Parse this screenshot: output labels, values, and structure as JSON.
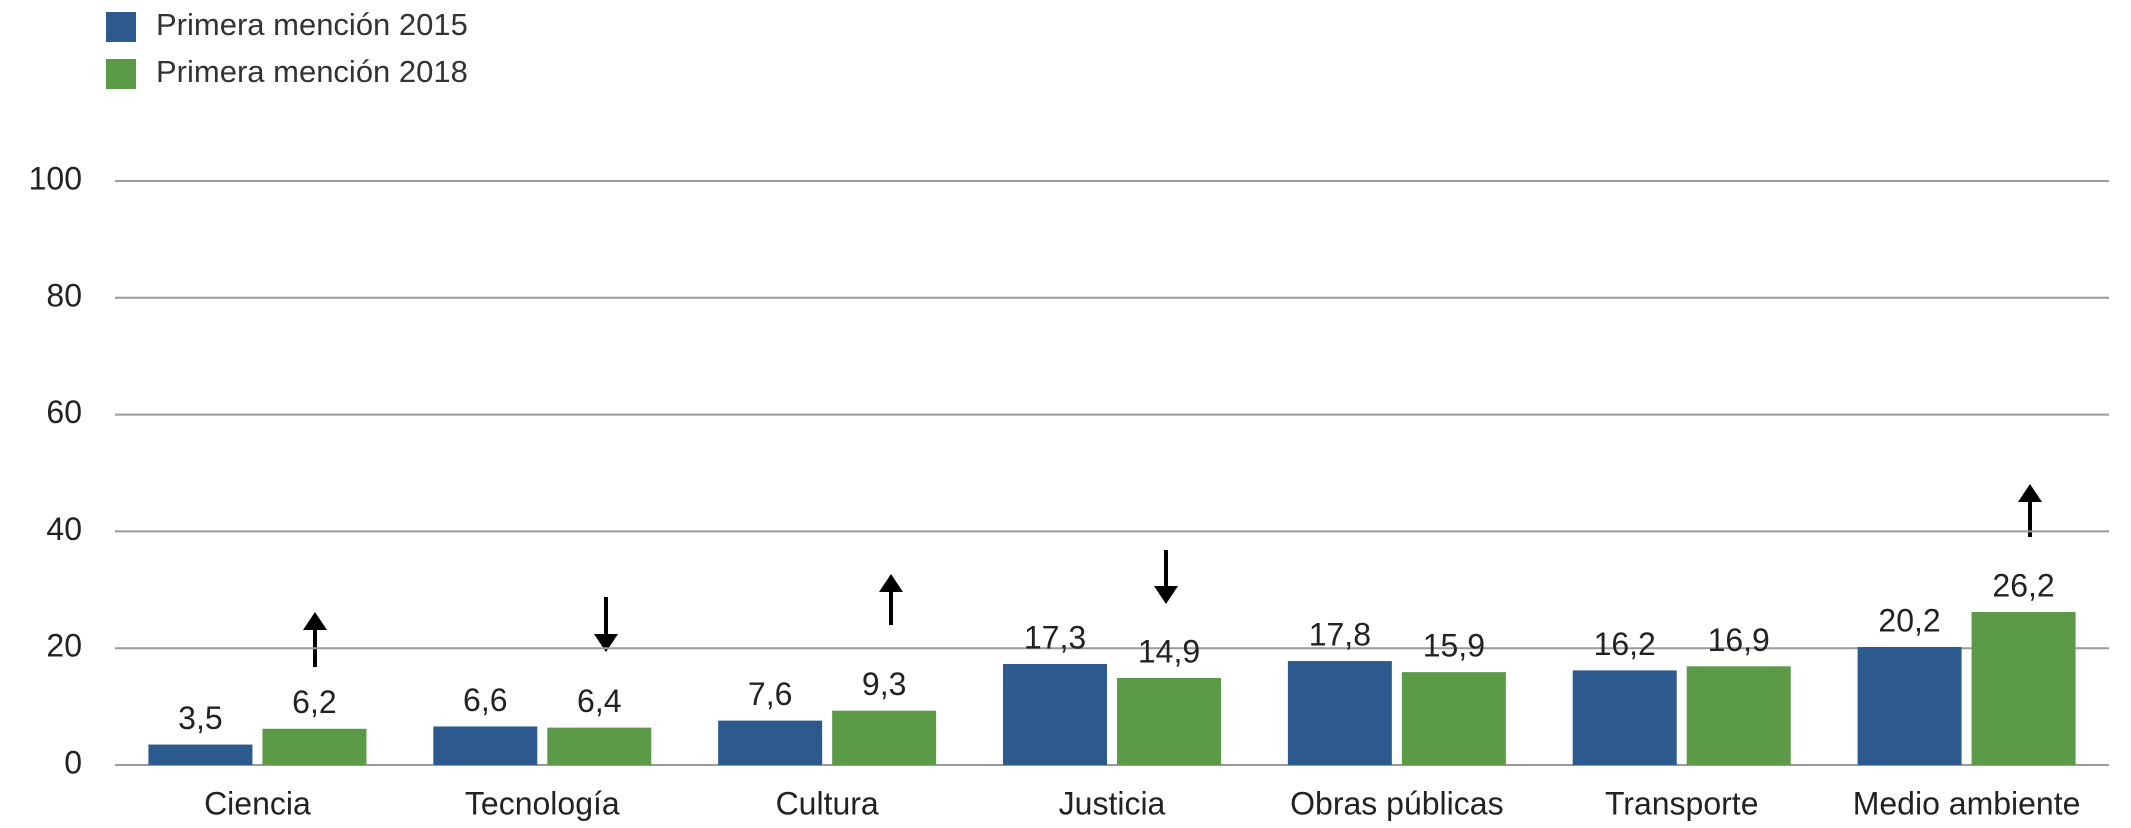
{
  "chart_data": {
    "type": "bar",
    "categories": [
      "Ciencia",
      "Tecnología",
      "Cultura",
      "Justicia",
      "Obras públicas",
      "Transporte",
      "Medio ambiente"
    ],
    "series": [
      {
        "name": "Primera mención 2015",
        "color": "#2d5a8e",
        "values": [
          3.5,
          6.6,
          7.6,
          17.3,
          17.8,
          16.2,
          20.2
        ],
        "value_labels": [
          "3,5",
          "6,6",
          "7,6",
          "17,3",
          "17,8",
          "16,2",
          "20,2"
        ]
      },
      {
        "name": "Primera mención 2018",
        "color": "#5b9a47",
        "values": [
          6.2,
          6.4,
          9.3,
          14.9,
          15.9,
          16.9,
          26.2
        ],
        "value_labels": [
          "6,2",
          "6,4",
          "9,3",
          "14,9",
          "15,9",
          "16,9",
          "26,2"
        ]
      }
    ],
    "ylim": [
      0,
      100
    ],
    "yticks": [
      0,
      20,
      40,
      60,
      80,
      100
    ],
    "grid": true,
    "legend": "top-left"
  }
}
